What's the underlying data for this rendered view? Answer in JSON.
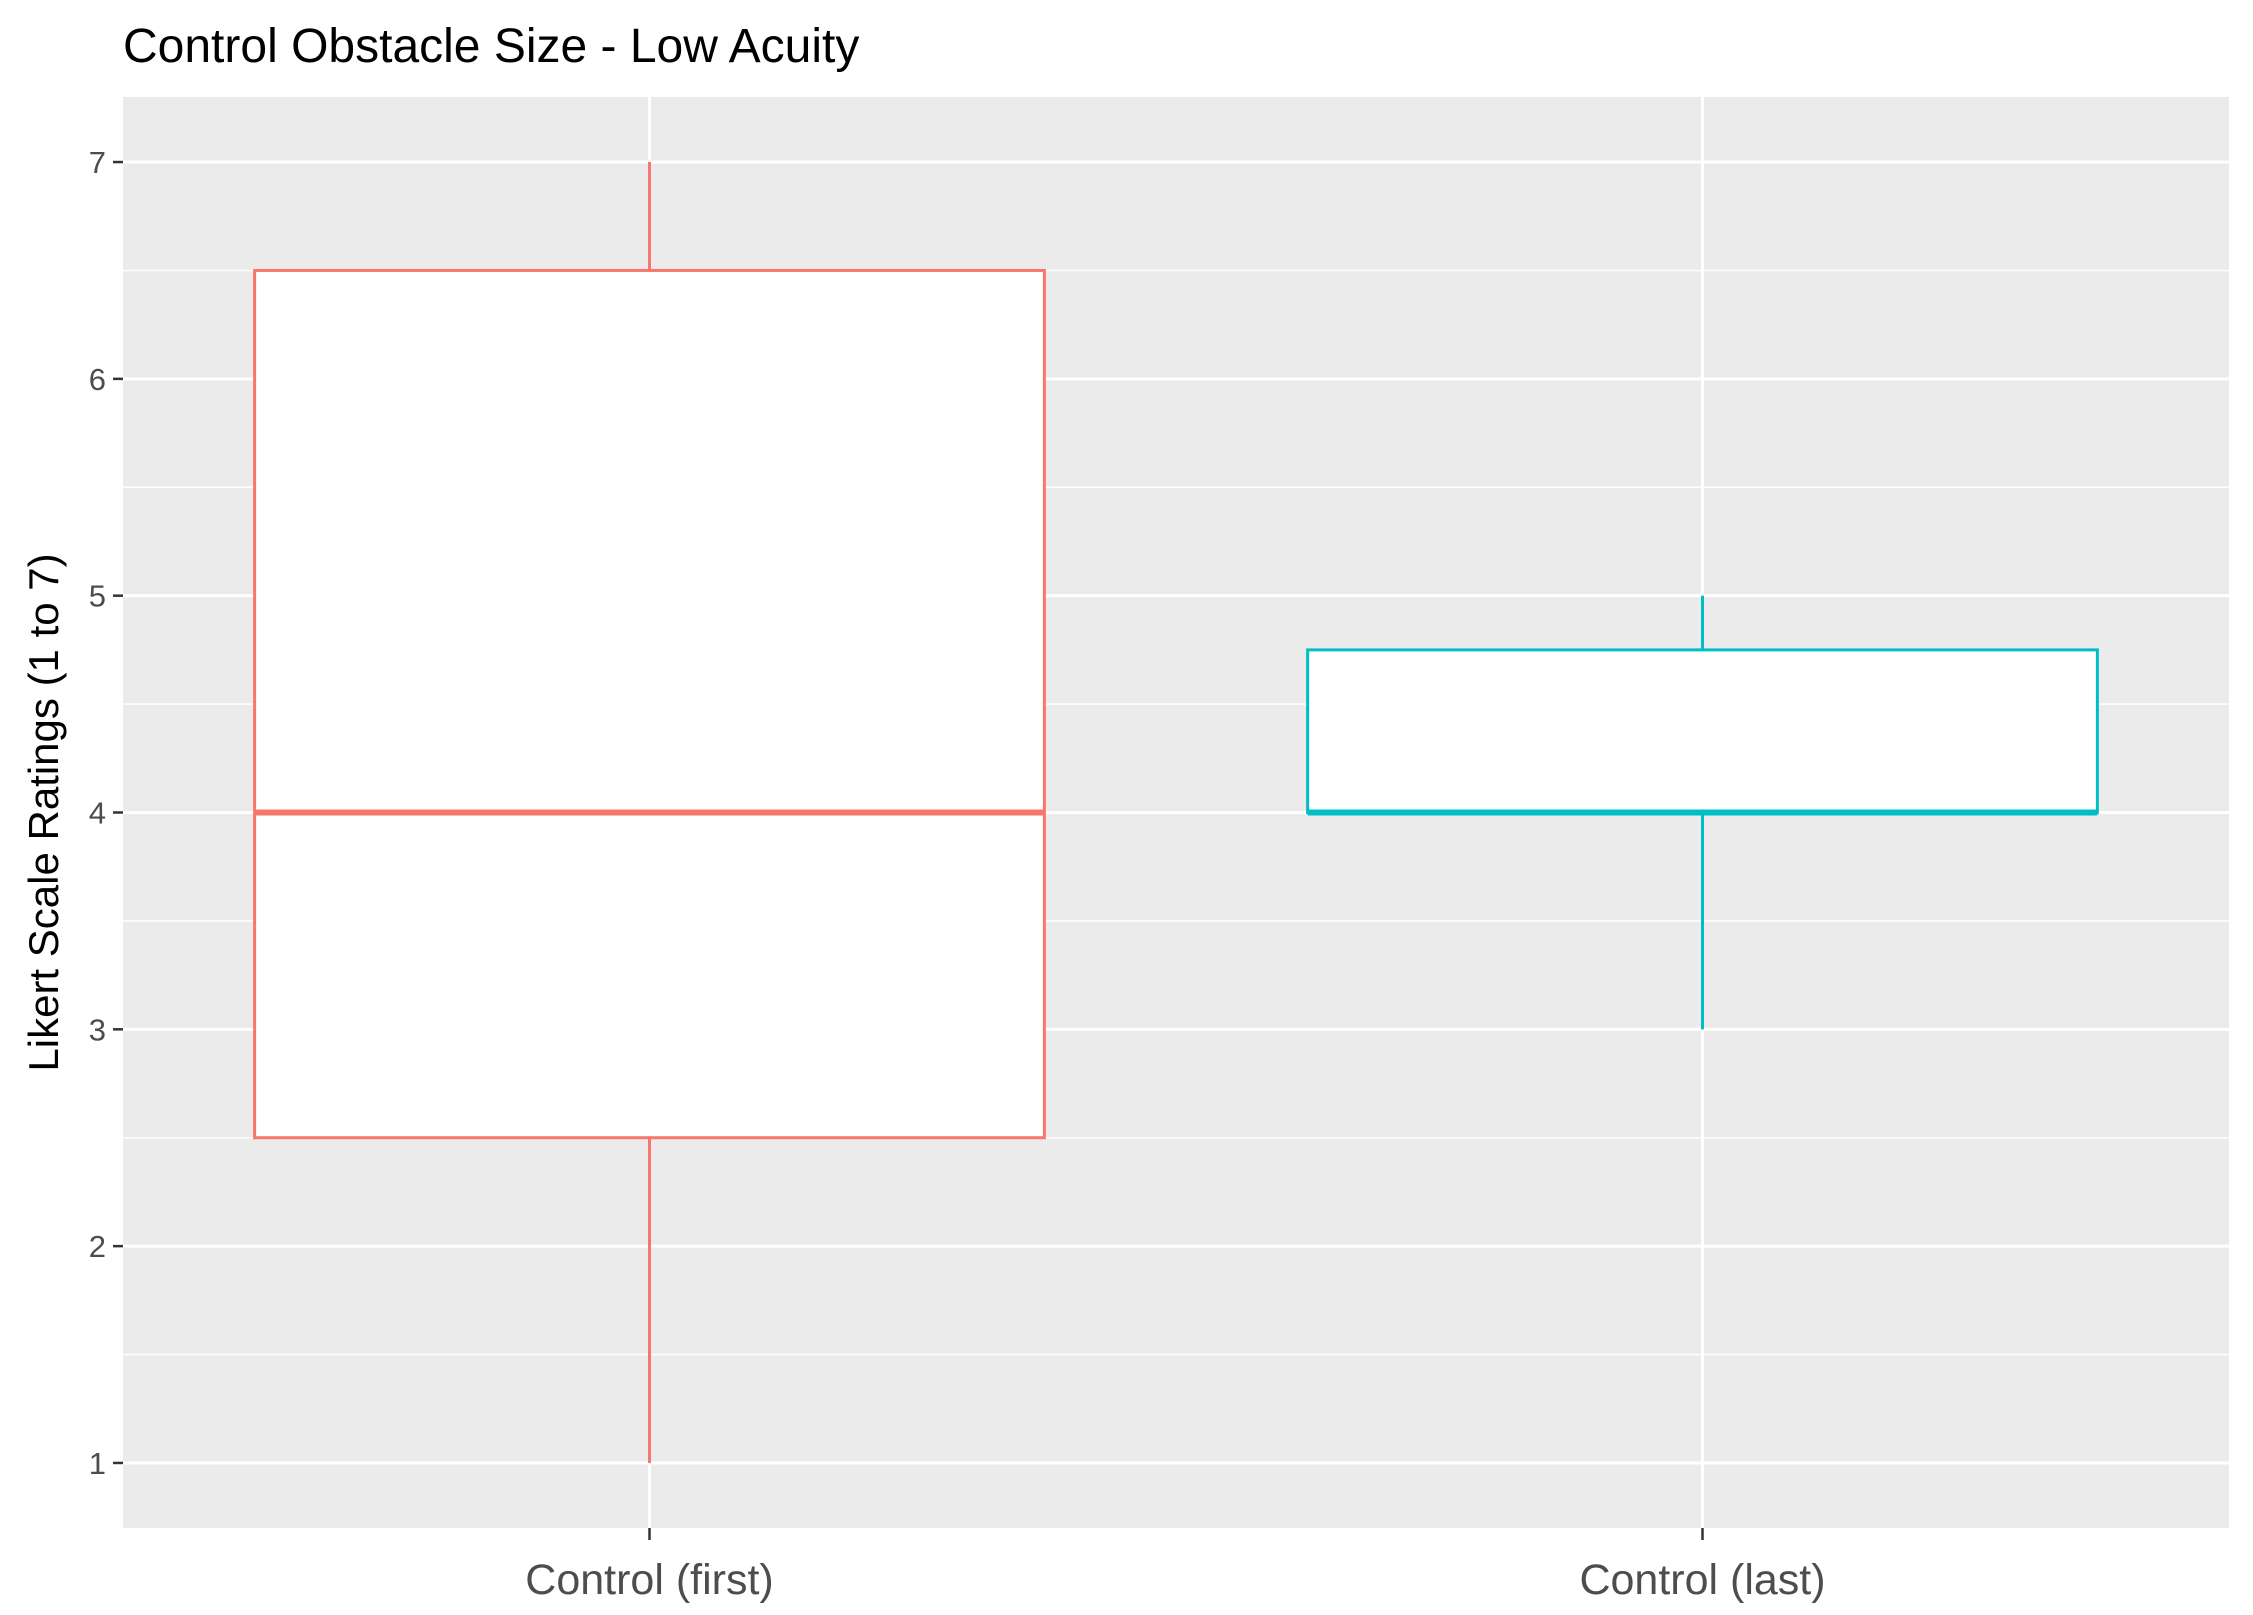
{
  "colors": {
    "panel_background": "#ebebeb",
    "grid": "#ffffff",
    "tick": "#333333",
    "box_fill": "#ffffff"
  },
  "chart_data": {
    "type": "boxplot",
    "title": "Control Obstacle Size  - Low Acuity",
    "xlabel": "",
    "ylabel": "Likert Scale Ratings (1 to 7)",
    "ylim": [
      0.7,
      7.3
    ],
    "y_ticks": [
      "1",
      "2",
      "3",
      "4",
      "5",
      "6",
      "7"
    ],
    "grid": true,
    "legend": "none",
    "categories": [
      "Control (first)",
      "Control (last)"
    ],
    "series": [
      {
        "category": "Control (first)",
        "color": "#F8766D",
        "min": 1,
        "q1": 2.5,
        "median": 4,
        "q3": 6.5,
        "max": 7
      },
      {
        "category": "Control (last)",
        "color": "#00BFC4",
        "min": 3,
        "q1": 4,
        "median": 4,
        "q3": 4.75,
        "max": 5
      }
    ]
  }
}
